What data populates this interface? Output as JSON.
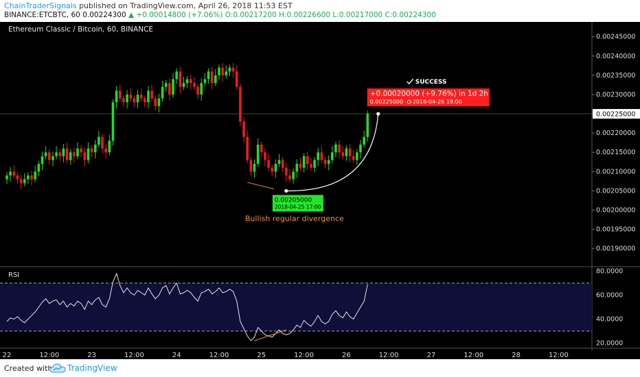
{
  "header": {
    "author": "ChainTraderSignals",
    "published": "published on TradingView.com, April 26, 2018 11:53 EST",
    "symbol_line": "BINANCE:ETCBTC, 60",
    "last": "0.00224300",
    "change": "▲ +0.00014800 (+7.06%)",
    "ohlc": "O:0.00217200 H:0.00226600 L:0.00217000 C:0.00224300"
  },
  "footer": {
    "created_with": "Created with",
    "brand": "TradingView"
  },
  "chart_data": [
    {
      "type": "candlestick",
      "title": "Ethereum Classic / Bitcoin, 60, BINANCE",
      "ylim": [
        0.001855,
        0.002485
      ],
      "y_ticks": [
        "0.00245000",
        "0.00240000",
        "0.00235000",
        "0.00230000",
        "0.00225000",
        "0.00220000",
        "0.00215000",
        "0.00210000",
        "0.00205000",
        "0.00200000",
        "0.00195000",
        "0.00190000"
      ],
      "y_tick_values": [
        0.00245,
        0.0024,
        0.00235,
        0.0023,
        0.00225,
        0.0022,
        0.00215,
        0.0021,
        0.00205,
        0.002,
        0.00195,
        0.0019
      ],
      "x_ticks": [
        "22",
        "12:00",
        "23",
        "12:00",
        "24",
        "12:00",
        "25",
        "12:00",
        "26",
        "12:00",
        "27",
        "12:00",
        "28",
        "12:00"
      ],
      "x_tick_values": [
        0,
        12,
        24,
        36,
        48,
        60,
        72,
        84,
        96,
        108,
        120,
        132,
        144,
        156
      ],
      "x_unit": "hours since first visible day mark",
      "last_price_label": "0.00225000",
      "last_price_level": 0.00225,
      "close": [
        0.00209,
        0.0021,
        0.00209,
        0.00208,
        0.00207,
        0.00208,
        0.00209,
        0.00208,
        0.0021,
        0.00212,
        0.00214,
        0.00215,
        0.00213,
        0.00214,
        0.00215,
        0.00214,
        0.00216,
        0.00213,
        0.00215,
        0.00214,
        0.00216,
        0.00215,
        0.00213,
        0.00216,
        0.00215,
        0.00217,
        0.00219,
        0.00216,
        0.00215,
        0.00218,
        0.00228,
        0.00231,
        0.00229,
        0.00228,
        0.0023,
        0.00229,
        0.00228,
        0.0023,
        0.00229,
        0.00228,
        0.00231,
        0.00229,
        0.00227,
        0.00229,
        0.00232,
        0.00233,
        0.0023,
        0.00234,
        0.00236,
        0.00232,
        0.00233,
        0.00234,
        0.00233,
        0.00232,
        0.0023,
        0.00233,
        0.00234,
        0.00236,
        0.00233,
        0.00235,
        0.00237,
        0.00235,
        0.00236,
        0.00237,
        0.00236,
        0.00232,
        0.00223,
        0.00219,
        0.00213,
        0.0021,
        0.00212,
        0.00217,
        0.00215,
        0.00213,
        0.00211,
        0.0021,
        0.00212,
        0.00213,
        0.00211,
        0.00209,
        0.00208,
        0.0021,
        0.00212,
        0.00211,
        0.00214,
        0.00212,
        0.00211,
        0.00213,
        0.00215,
        0.00213,
        0.00212,
        0.00213,
        0.00215,
        0.00217,
        0.00215,
        0.00214,
        0.00216,
        0.00214,
        0.00213,
        0.00215,
        0.00217,
        0.00219,
        0.00225
      ],
      "annotations": {
        "divergence_low": {
          "label": "0.00205000",
          "date": "2018-04-25 17:00",
          "price": 0.00205,
          "x": 79
        },
        "target": {
          "label": "+0.00020000 (+9.76%) in 1d 2h",
          "sub_price": "0.00225000",
          "sub_date": "2018-04-26  19:00",
          "price": 0.00225,
          "x": 105
        },
        "success": "SUCCESS",
        "divergence_text": "Bullish regular divergence"
      }
    },
    {
      "type": "line",
      "title": "RSI",
      "ylim": [
        18,
        82
      ],
      "y_ticks": [
        "80.0000",
        "60.0000",
        "40.0000",
        "20.0000"
      ],
      "y_tick_values": [
        80,
        60,
        40,
        20
      ],
      "bands": [
        70,
        30
      ],
      "values": [
        38,
        41,
        40,
        42,
        39,
        37,
        40,
        43,
        46,
        50,
        54,
        57,
        53,
        55,
        56,
        52,
        55,
        50,
        53,
        51,
        55,
        53,
        48,
        55,
        52,
        56,
        58,
        52,
        50,
        57,
        71,
        78,
        68,
        62,
        66,
        62,
        60,
        64,
        62,
        60,
        66,
        61,
        57,
        60,
        66,
        68,
        61,
        66,
        70,
        61,
        62,
        64,
        62,
        58,
        55,
        62,
        63,
        65,
        61,
        63,
        66,
        62,
        63,
        65,
        63,
        55,
        38,
        32,
        26,
        22,
        25,
        33,
        30,
        27,
        26,
        25,
        28,
        31,
        28,
        27,
        28,
        31,
        35,
        33,
        39,
        36,
        34,
        38,
        43,
        38,
        36,
        38,
        44,
        47,
        43,
        41,
        46,
        42,
        40,
        45,
        50,
        55,
        69
      ]
    }
  ]
}
